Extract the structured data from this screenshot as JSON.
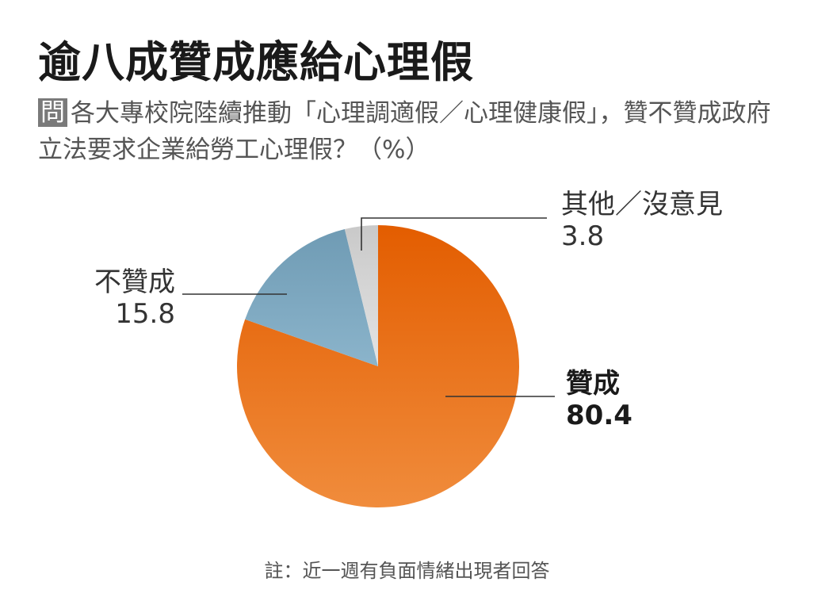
{
  "title": "逾八成贊成應給心理假",
  "question": {
    "badge": "問",
    "text": "各大專校院陸續推動「心理調適假／心理健康假」，贊不贊成政府立法要求企業給勞工心理假？（%）"
  },
  "footnote": "註：近一週有負面情緒出現者回答",
  "colors": {
    "agree": "#eb6e1f",
    "disagree": "#7ea8c0",
    "other": "#d6d6d6"
  },
  "chart_data": {
    "type": "pie",
    "unit": "%",
    "slices": [
      {
        "label": "贊成",
        "value": 80.4,
        "display": "80.4"
      },
      {
        "label": "不贊成",
        "value": 15.8,
        "display": "15.8"
      },
      {
        "label": "其他／沒意見",
        "value": 3.8,
        "display": "3.8"
      }
    ]
  }
}
